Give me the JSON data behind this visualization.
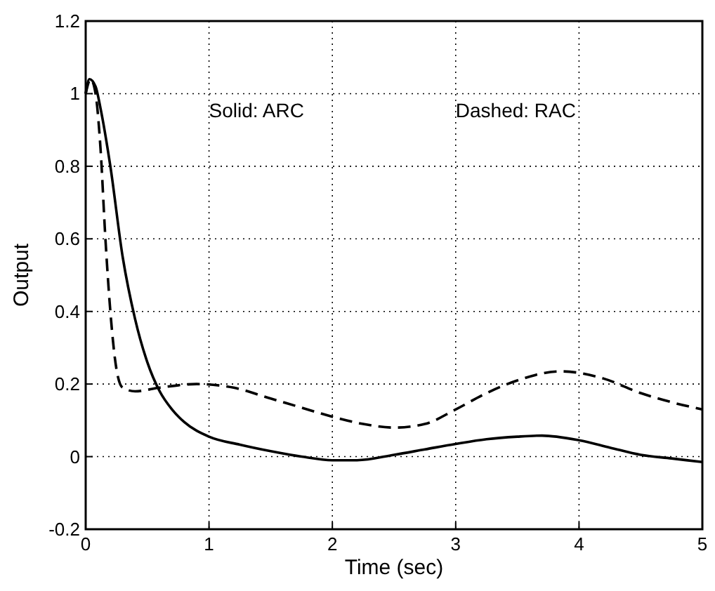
{
  "chart_data": {
    "type": "line",
    "xlabel": "Time (sec)",
    "ylabel": "Output",
    "xlim": [
      0,
      5
    ],
    "ylim": [
      -0.2,
      1.2
    ],
    "xticks": [
      0,
      1,
      2,
      3,
      4,
      5
    ],
    "yticks": [
      -0.2,
      0,
      0.2,
      0.4,
      0.6,
      0.8,
      1,
      1.2
    ],
    "grid": true,
    "annotations": [
      "Solid: ARC",
      "Dashed: RAC"
    ],
    "series": [
      {
        "color": "#000000",
        "line_style": "solid",
        "x": [
          0,
          0.03,
          0.08,
          0.12,
          0.2,
          0.3,
          0.4,
          0.5,
          0.6,
          0.7,
          0.8,
          1.0,
          1.25,
          1.5,
          1.75,
          2.0,
          2.2,
          2.5,
          2.75,
          3.0,
          3.25,
          3.5,
          3.7,
          4.0,
          4.25,
          4.5,
          4.75,
          5.0
        ],
        "values": [
          1.0,
          1.04,
          1.02,
          0.96,
          0.8,
          0.55,
          0.38,
          0.26,
          0.18,
          0.13,
          0.095,
          0.055,
          0.033,
          0.015,
          0.0,
          -0.01,
          -0.01,
          0.005,
          0.02,
          0.035,
          0.048,
          0.055,
          0.058,
          0.045,
          0.025,
          0.005,
          -0.005,
          -0.015
        ]
      },
      {
        "color": "#000000",
        "line_style": "dashed",
        "x": [
          0,
          0.04,
          0.08,
          0.12,
          0.16,
          0.2,
          0.25,
          0.3,
          0.4,
          0.6,
          0.9,
          1.2,
          1.5,
          1.75,
          2.0,
          2.25,
          2.5,
          2.75,
          3.0,
          3.25,
          3.5,
          3.85,
          4.2,
          4.5,
          4.75,
          5.0
        ],
        "values": [
          1.0,
          1.04,
          1.0,
          0.85,
          0.6,
          0.4,
          0.24,
          0.19,
          0.18,
          0.19,
          0.2,
          0.19,
          0.16,
          0.135,
          0.11,
          0.09,
          0.08,
          0.09,
          0.13,
          0.175,
          0.21,
          0.235,
          0.215,
          0.175,
          0.15,
          0.13
        ]
      }
    ]
  }
}
